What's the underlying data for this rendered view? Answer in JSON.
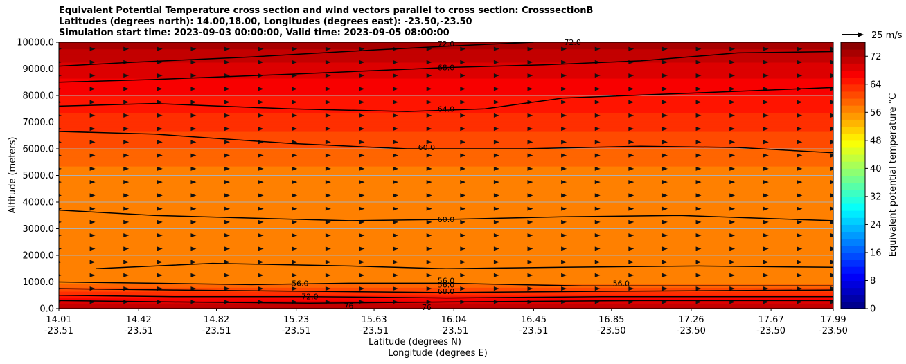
{
  "chart_data": {
    "type": "contourf",
    "title": [
      "Equivalent Potential Temperature cross section and wind vectors parallel to cross section: CrosssectionB",
      "Latitudes (degrees north): 14.00,18.00, Longitudes (degrees east): -23.50,-23.50",
      "Simulation start time: 2023-09-03 00:00:00, Valid time: 2023-09-05 08:00:00"
    ],
    "ylabel": "Altitude (meters)",
    "xlabel": "Latitude (degrees N)",
    "xlabel2": "Longitude (degrees E)",
    "ylim": [
      0,
      10000
    ],
    "xlim": [
      14.01,
      17.99
    ],
    "yticks": [
      "0.0",
      "1000.0",
      "2000.0",
      "3000.0",
      "4000.0",
      "5000.0",
      "6000.0",
      "7000.0",
      "8000.0",
      "9000.0",
      "10000.0"
    ],
    "xticks": [
      {
        "lat": "14.01",
        "lon": "-23.51"
      },
      {
        "lat": "14.42",
        "lon": "-23.51"
      },
      {
        "lat": "14.82",
        "lon": "-23.51"
      },
      {
        "lat": "15.23",
        "lon": "-23.51"
      },
      {
        "lat": "15.63",
        "lon": "-23.51"
      },
      {
        "lat": "16.04",
        "lon": "-23.51"
      },
      {
        "lat": "16.45",
        "lon": "-23.51"
      },
      {
        "lat": "16.85",
        "lon": "-23.50"
      },
      {
        "lat": "17.26",
        "lon": "-23.50"
      },
      {
        "lat": "17.67",
        "lon": "-23.50"
      },
      {
        "lat": "17.99",
        "lon": "-23.50"
      }
    ],
    "grid": true,
    "colorbar": {
      "label": "Equivalent potential temperature $^\\circ$C",
      "range": [
        0,
        76
      ],
      "ticks": [
        "0",
        "8",
        "16",
        "24",
        "32",
        "40",
        "48",
        "56",
        "64",
        "72"
      ],
      "colormap": "jet"
    },
    "quiver_key": "25 m/s",
    "contour_labels": [
      "72.0",
      "72.0",
      "68.0",
      "64.0",
      "60.0",
      "60.0",
      "56.0",
      "56.0",
      "56.0",
      "56.0",
      "68.0",
      "72.0",
      "76",
      "76"
    ],
    "theta_e_profile": [
      {
        "z": 0,
        "theta": 73
      },
      {
        "z": 250,
        "theta": 69
      },
      {
        "z": 500,
        "theta": 64
      },
      {
        "z": 1000,
        "theta": 57
      },
      {
        "z": 1500,
        "theta": 56.5
      },
      {
        "z": 2500,
        "theta": 58
      },
      {
        "z": 4000,
        "theta": 56.5
      },
      {
        "z": 5000,
        "theta": 57
      },
      {
        "z": 6000,
        "theta": 60
      },
      {
        "z": 7000,
        "theta": 63
      },
      {
        "z": 8000,
        "theta": 66
      },
      {
        "z": 9000,
        "theta": 69
      },
      {
        "z": 10000,
        "theta": 73
      }
    ],
    "contours": [
      {
        "level": 72.0,
        "points": [
          [
            14.01,
            9100
          ],
          [
            14.4,
            9250
          ],
          [
            15.0,
            9450
          ],
          [
            15.6,
            9700
          ],
          [
            16.0,
            9850
          ],
          [
            16.45,
            10000
          ]
        ]
      },
      {
        "level": 68.0,
        "points": [
          [
            14.01,
            8500
          ],
          [
            14.5,
            8600
          ],
          [
            15.2,
            8800
          ],
          [
            16.0,
            9050
          ],
          [
            16.5,
            9150
          ],
          [
            17.0,
            9300
          ],
          [
            17.5,
            9600
          ],
          [
            17.99,
            9650
          ]
        ]
      },
      {
        "level": 64.0,
        "points": [
          [
            14.01,
            7600
          ],
          [
            14.5,
            7700
          ],
          [
            15.2,
            7500
          ],
          [
            15.8,
            7400
          ],
          [
            16.2,
            7500
          ],
          [
            16.6,
            7900
          ],
          [
            17.3,
            8100
          ],
          [
            17.99,
            8300
          ]
        ]
      },
      {
        "level": 60.0,
        "points": [
          [
            14.01,
            6650
          ],
          [
            14.5,
            6550
          ],
          [
            15.2,
            6200
          ],
          [
            15.8,
            6000
          ],
          [
            16.4,
            6000
          ],
          [
            17.0,
            6100
          ],
          [
            17.5,
            6050
          ],
          [
            17.99,
            5850
          ]
        ]
      },
      {
        "level": 60.0,
        "points": [
          [
            14.01,
            3700
          ],
          [
            14.5,
            3500
          ],
          [
            15.0,
            3400
          ],
          [
            15.5,
            3300
          ],
          [
            16.0,
            3350
          ],
          [
            16.6,
            3450
          ],
          [
            17.2,
            3500
          ],
          [
            17.99,
            3300
          ]
        ]
      },
      {
        "level": 56.0,
        "points": [
          [
            14.2,
            1500
          ],
          [
            14.8,
            1700
          ],
          [
            15.5,
            1600
          ],
          [
            16.0,
            1500
          ],
          [
            16.6,
            1550
          ],
          [
            17.3,
            1600
          ],
          [
            17.99,
            1550
          ]
        ]
      },
      {
        "level": 56.0,
        "points": [
          [
            14.01,
            1000
          ],
          [
            14.5,
            950
          ],
          [
            15.0,
            900
          ],
          [
            15.5,
            950
          ],
          [
            16.0,
            950
          ],
          [
            16.7,
            850
          ],
          [
            17.99,
            850
          ]
        ]
      },
      {
        "level": 60.0,
        "points": [
          [
            14.01,
            750
          ],
          [
            14.6,
            700
          ],
          [
            15.3,
            650
          ],
          [
            16.0,
            600
          ],
          [
            16.8,
            650
          ],
          [
            17.99,
            700
          ]
        ]
      },
      {
        "level": 68.0,
        "points": [
          [
            14.01,
            500
          ],
          [
            14.6,
            450
          ],
          [
            15.3,
            450
          ],
          [
            16.0,
            400
          ],
          [
            16.8,
            450
          ],
          [
            17.99,
            450
          ]
        ]
      },
      {
        "level": 72.0,
        "points": [
          [
            14.01,
            300
          ],
          [
            14.6,
            250
          ],
          [
            15.3,
            200
          ],
          [
            16.0,
            250
          ],
          [
            17.0,
            300
          ],
          [
            17.99,
            300
          ]
        ]
      }
    ]
  }
}
